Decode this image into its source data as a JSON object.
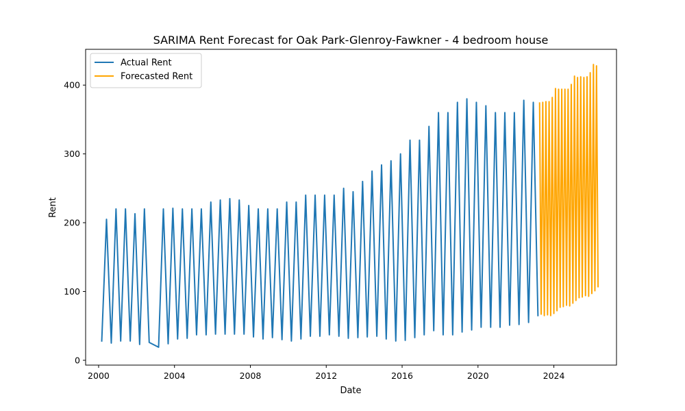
{
  "chart_data": {
    "type": "line",
    "title": "SARIMA Rent Forecast for Oak Park-Glenroy-Fawkner - 4 bedroom house",
    "xlabel": "Date",
    "ylabel": "Rent",
    "xlim": [
      "1999-04-26",
      "2027-04-21"
    ],
    "ylim": [
      -7,
      452
    ],
    "xticks": [
      {
        "date": "2000-01-01",
        "label": "2000"
      },
      {
        "date": "2004-01-01",
        "label": "2004"
      },
      {
        "date": "2008-01-01",
        "label": "2008"
      },
      {
        "date": "2012-01-01",
        "label": "2012"
      },
      {
        "date": "2016-01-01",
        "label": "2016"
      },
      {
        "date": "2020-01-01",
        "label": "2020"
      },
      {
        "date": "2024-01-01",
        "label": "2024"
      }
    ],
    "yticks": [
      {
        "value": 0,
        "label": "0"
      },
      {
        "value": 100,
        "label": "100"
      },
      {
        "value": 200,
        "label": "200"
      },
      {
        "value": 300,
        "label": "300"
      },
      {
        "value": 400,
        "label": "400"
      }
    ],
    "grid": false,
    "legend_position": "top-left",
    "series": [
      {
        "name": "Actual Rent",
        "color": "#1f77b4",
        "points": [
          [
            "2000-03-01",
            27
          ],
          [
            "2000-06-01",
            205
          ],
          [
            "2000-09-01",
            25
          ],
          [
            "2000-12-01",
            220
          ],
          [
            "2001-03-01",
            28
          ],
          [
            "2001-06-01",
            220
          ],
          [
            "2001-09-01",
            28
          ],
          [
            "2001-12-01",
            213
          ],
          [
            "2002-03-01",
            23
          ],
          [
            "2002-06-01",
            220
          ],
          [
            "2002-09-01",
            26
          ],
          [
            "2003-03-01",
            19
          ],
          [
            "2003-06-01",
            220
          ],
          [
            "2003-09-01",
            24
          ],
          [
            "2003-12-01",
            221
          ],
          [
            "2004-03-01",
            31
          ],
          [
            "2004-06-01",
            220
          ],
          [
            "2004-09-01",
            32
          ],
          [
            "2004-12-01",
            220
          ],
          [
            "2005-03-01",
            37
          ],
          [
            "2005-06-01",
            220
          ],
          [
            "2005-09-01",
            37
          ],
          [
            "2005-12-01",
            230
          ],
          [
            "2006-03-01",
            38
          ],
          [
            "2006-06-01",
            233
          ],
          [
            "2006-09-01",
            38
          ],
          [
            "2006-12-01",
            235
          ],
          [
            "2007-03-01",
            38
          ],
          [
            "2007-06-01",
            233
          ],
          [
            "2007-09-01",
            38
          ],
          [
            "2007-12-01",
            225
          ],
          [
            "2008-03-01",
            34
          ],
          [
            "2008-06-01",
            220
          ],
          [
            "2008-09-01",
            31
          ],
          [
            "2008-12-01",
            220
          ],
          [
            "2009-03-01",
            33
          ],
          [
            "2009-06-01",
            220
          ],
          [
            "2009-09-01",
            30
          ],
          [
            "2009-12-01",
            230
          ],
          [
            "2010-03-01",
            28
          ],
          [
            "2010-06-01",
            230
          ],
          [
            "2010-09-01",
            31
          ],
          [
            "2010-12-01",
            240
          ],
          [
            "2011-03-01",
            35
          ],
          [
            "2011-06-01",
            240
          ],
          [
            "2011-09-01",
            35
          ],
          [
            "2011-12-01",
            240
          ],
          [
            "2012-03-01",
            37
          ],
          [
            "2012-06-01",
            240
          ],
          [
            "2012-09-01",
            35
          ],
          [
            "2012-12-01",
            250
          ],
          [
            "2013-03-01",
            32
          ],
          [
            "2013-06-01",
            245
          ],
          [
            "2013-09-01",
            33
          ],
          [
            "2013-12-01",
            260
          ],
          [
            "2014-03-01",
            34
          ],
          [
            "2014-06-01",
            275
          ],
          [
            "2014-09-01",
            35
          ],
          [
            "2014-12-01",
            284
          ],
          [
            "2015-03-01",
            31
          ],
          [
            "2015-06-01",
            290
          ],
          [
            "2015-09-01",
            28
          ],
          [
            "2015-12-01",
            300
          ],
          [
            "2016-03-01",
            29
          ],
          [
            "2016-06-01",
            320
          ],
          [
            "2016-09-01",
            33
          ],
          [
            "2016-12-01",
            320
          ],
          [
            "2017-03-01",
            37
          ],
          [
            "2017-06-01",
            340
          ],
          [
            "2017-09-01",
            43
          ],
          [
            "2017-12-01",
            360
          ],
          [
            "2018-03-01",
            37
          ],
          [
            "2018-06-01",
            360
          ],
          [
            "2018-09-01",
            37
          ],
          [
            "2018-12-01",
            375
          ],
          [
            "2019-03-01",
            41
          ],
          [
            "2019-06-01",
            380
          ],
          [
            "2019-09-01",
            44
          ],
          [
            "2019-12-01",
            375
          ],
          [
            "2020-03-01",
            48
          ],
          [
            "2020-06-01",
            370
          ],
          [
            "2020-09-01",
            48
          ],
          [
            "2020-12-01",
            360
          ],
          [
            "2021-03-01",
            48
          ],
          [
            "2021-06-01",
            360
          ],
          [
            "2021-09-01",
            51
          ],
          [
            "2021-12-01",
            360
          ],
          [
            "2022-03-01",
            52
          ],
          [
            "2022-06-01",
            378
          ],
          [
            "2022-09-01",
            55
          ],
          [
            "2022-12-01",
            375
          ],
          [
            "2023-03-01",
            64
          ]
        ]
      },
      {
        "name": "Forecasted Rent",
        "color": "#ffa500",
        "points": [
          [
            "2023-04-01",
            375
          ],
          [
            "2023-05-01",
            67
          ],
          [
            "2023-06-01",
            375
          ],
          [
            "2023-07-01",
            65
          ],
          [
            "2023-08-01",
            376
          ],
          [
            "2023-09-01",
            66
          ],
          [
            "2023-10-01",
            376
          ],
          [
            "2023-11-01",
            65
          ],
          [
            "2023-12-01",
            382
          ],
          [
            "2024-01-01",
            68
          ],
          [
            "2024-02-01",
            395
          ],
          [
            "2024-03-01",
            72
          ],
          [
            "2024-04-01",
            394
          ],
          [
            "2024-05-01",
            77
          ],
          [
            "2024-06-01",
            394
          ],
          [
            "2024-07-01",
            78
          ],
          [
            "2024-08-01",
            394
          ],
          [
            "2024-09-01",
            80
          ],
          [
            "2024-10-01",
            394
          ],
          [
            "2024-11-01",
            79
          ],
          [
            "2024-12-01",
            401
          ],
          [
            "2025-01-01",
            83
          ],
          [
            "2025-02-01",
            413
          ],
          [
            "2025-03-01",
            87
          ],
          [
            "2025-04-01",
            411
          ],
          [
            "2025-05-01",
            91
          ],
          [
            "2025-06-01",
            412
          ],
          [
            "2025-07-01",
            92
          ],
          [
            "2025-08-01",
            411
          ],
          [
            "2025-09-01",
            94
          ],
          [
            "2025-10-01",
            412
          ],
          [
            "2025-11-01",
            93
          ],
          [
            "2025-12-01",
            418
          ],
          [
            "2026-01-01",
            97
          ],
          [
            "2026-02-01",
            430
          ],
          [
            "2026-03-01",
            101
          ],
          [
            "2026-04-01",
            428
          ],
          [
            "2026-05-01",
            106
          ]
        ]
      }
    ]
  }
}
